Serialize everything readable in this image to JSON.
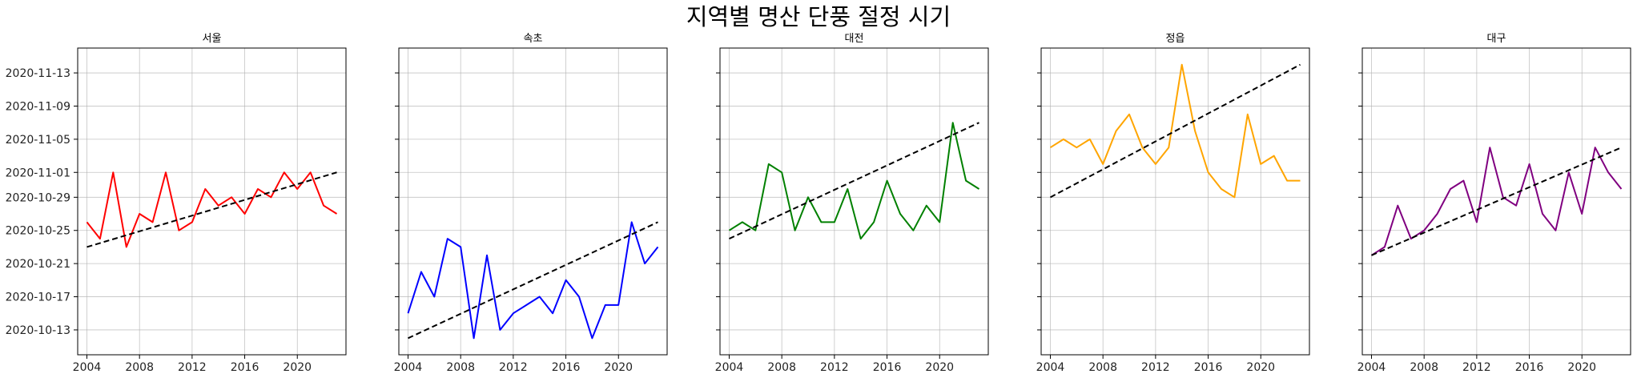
{
  "title": "지역별 명산 단풍 절정 시기",
  "chart_data": {
    "type": "line",
    "title": "지역별 명산 단풍 절정 시기",
    "shared_y": true,
    "ylim": [
      "2020-10-10",
      "2020-11-16"
    ],
    "yticks": [
      "2020-10-13",
      "2020-10-17",
      "2020-10-21",
      "2020-10-25",
      "2020-10-29",
      "2020-11-01",
      "2020-11-05",
      "2020-11-09",
      "2020-11-13"
    ],
    "xlim": [
      2003.3,
      2023.7
    ],
    "xticks": [
      2004,
      2008,
      2012,
      2016,
      2020
    ],
    "grid": true,
    "panels": [
      {
        "title": "서울",
        "color": "#ff0000",
        "x": [
          2004,
          2005,
          2006,
          2007,
          2008,
          2009,
          2010,
          2011,
          2012,
          2013,
          2014,
          2015,
          2016,
          2017,
          2018,
          2019,
          2020,
          2021,
          2022,
          2023
        ],
        "y": [
          "2020-10-26",
          "2020-10-24",
          "2020-11-01",
          "2020-10-23",
          "2020-10-27",
          "2020-10-26",
          "2020-11-01",
          "2020-10-25",
          "2020-10-26",
          "2020-10-30",
          "2020-10-28",
          "2020-10-29",
          "2020-10-27",
          "2020-10-30",
          "2020-10-29",
          "2020-11-01",
          "2020-10-30",
          "2020-11-01",
          "2020-10-28",
          "2020-10-27"
        ],
        "trend": [
          "2020-10-23",
          "2020-11-01"
        ]
      },
      {
        "title": "속초",
        "color": "#0000ff",
        "x": [
          2004,
          2005,
          2006,
          2007,
          2008,
          2009,
          2010,
          2011,
          2012,
          2013,
          2014,
          2015,
          2016,
          2017,
          2018,
          2019,
          2020,
          2021,
          2022,
          2023
        ],
        "y": [
          "2020-10-15",
          "2020-10-20",
          "2020-10-17",
          "2020-10-24",
          "2020-10-23",
          "2020-10-12",
          "2020-10-22",
          "2020-10-13",
          "2020-10-15",
          "2020-10-16",
          "2020-10-17",
          "2020-10-15",
          "2020-10-19",
          "2020-10-17",
          "2020-10-12",
          "2020-10-16",
          "2020-10-16",
          "2020-10-26",
          "2020-10-21",
          "2020-10-23"
        ],
        "trend": [
          "2020-10-12",
          "2020-10-26"
        ]
      },
      {
        "title": "대전",
        "color": "#008000",
        "x": [
          2004,
          2005,
          2006,
          2007,
          2008,
          2009,
          2010,
          2011,
          2012,
          2013,
          2014,
          2015,
          2016,
          2017,
          2018,
          2019,
          2020,
          2021,
          2022,
          2023
        ],
        "y": [
          "2020-10-25",
          "2020-10-26",
          "2020-10-25",
          "2020-11-02",
          "2020-11-01",
          "2020-10-25",
          "2020-10-29",
          "2020-10-26",
          "2020-10-26",
          "2020-10-30",
          "2020-10-24",
          "2020-10-26",
          "2020-10-31",
          "2020-10-27",
          "2020-10-25",
          "2020-10-28",
          "2020-10-26",
          "2020-11-07",
          "2020-10-31",
          "2020-10-30"
        ],
        "trend": [
          "2020-10-24",
          "2020-11-07"
        ]
      },
      {
        "title": "정읍",
        "color": "#ffa500",
        "x": [
          2004,
          2005,
          2006,
          2007,
          2008,
          2009,
          2010,
          2011,
          2012,
          2013,
          2014,
          2015,
          2016,
          2017,
          2018,
          2019,
          2020,
          2021,
          2022,
          2023
        ],
        "y": [
          "2020-11-04",
          "2020-11-05",
          "2020-11-04",
          "2020-11-05",
          "2020-11-02",
          "2020-11-06",
          "2020-11-08",
          "2020-11-04",
          "2020-11-02",
          "2020-11-04",
          "2020-11-14",
          "2020-11-06",
          "2020-11-01",
          "2020-10-30",
          "2020-10-29",
          "2020-11-08",
          "2020-11-02",
          "2020-11-03",
          "2020-10-31",
          "2020-10-31"
        ],
        "trend": [
          "2020-10-29",
          "2020-11-14"
        ]
      },
      {
        "title": "대구",
        "color": "#800080",
        "x": [
          2004,
          2005,
          2006,
          2007,
          2008,
          2009,
          2010,
          2011,
          2012,
          2013,
          2014,
          2015,
          2016,
          2017,
          2018,
          2019,
          2020,
          2021,
          2022,
          2023
        ],
        "y": [
          "2020-10-22",
          "2020-10-23",
          "2020-10-28",
          "2020-10-24",
          "2020-10-25",
          "2020-10-27",
          "2020-10-30",
          "2020-10-31",
          "2020-10-26",
          "2020-11-04",
          "2020-10-29",
          "2020-10-28",
          "2020-11-02",
          "2020-10-27",
          "2020-10-25",
          "2020-11-01",
          "2020-10-27",
          "2020-11-04",
          "2020-11-01",
          "2020-10-30"
        ],
        "trend": [
          "2020-10-22",
          "2020-11-04"
        ]
      }
    ]
  }
}
